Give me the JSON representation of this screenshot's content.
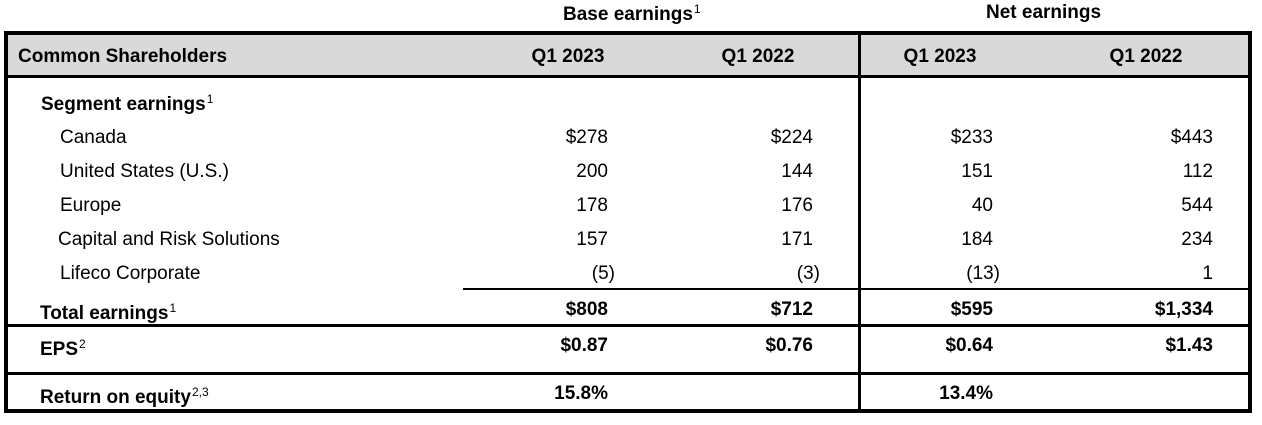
{
  "group_headers": {
    "base": {
      "label": "Base earnings",
      "footnote": "1"
    },
    "net": {
      "label": "Net earnings"
    }
  },
  "header": {
    "row_label": "Common Shareholders",
    "cols": [
      "Q1 2023",
      "Q1 2022",
      "Q1 2023",
      "Q1 2022"
    ]
  },
  "segment": {
    "label": "Segment earnings",
    "footnote": "1"
  },
  "rows": [
    {
      "label": "Canada",
      "values": [
        "$278",
        "$224",
        "$233",
        "$443"
      ]
    },
    {
      "label": "United States (U.S.)",
      "values": [
        "200",
        "144",
        "151",
        "112"
      ]
    },
    {
      "label": "Europe",
      "values": [
        "178",
        "176",
        "40",
        "544"
      ]
    },
    {
      "label": "Capital and Risk Solutions",
      "values": [
        "157",
        "171",
        "184",
        "234"
      ]
    },
    {
      "label": "Lifeco Corporate",
      "values": [
        "(5)",
        "(3)",
        "(13)",
        "1"
      ]
    }
  ],
  "total": {
    "label": "Total earnings",
    "footnote": "1",
    "values": [
      "$808",
      "$712",
      "$595",
      "$1,334"
    ]
  },
  "eps": {
    "label": "EPS",
    "footnote": "2",
    "values": [
      "$0.87",
      "$0.76",
      "$0.64",
      "$1.43"
    ]
  },
  "roe": {
    "label": "Return on equity",
    "footnote": "2,3",
    "values": [
      "15.8%",
      "",
      "13.4%",
      ""
    ]
  }
}
